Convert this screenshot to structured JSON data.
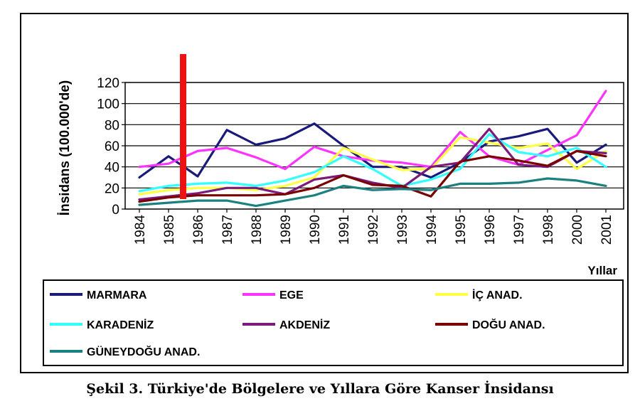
{
  "caption": "Şekil 3. Türkiye'de Bölgelere ve Yıllara Göre Kanser İnsidansı",
  "chart_data": {
    "type": "line",
    "title": "",
    "xlabel": "Yıllar",
    "ylabel": "İnsidans (100.000'de)",
    "ylim": [
      0,
      120
    ],
    "yticks": [
      "0",
      "20",
      "40",
      "60",
      "80",
      "100",
      "120"
    ],
    "categories": [
      "1984",
      "1985",
      "1986",
      "1987",
      "1988",
      "1989",
      "1990",
      "1991",
      "1992",
      "1993",
      "1994",
      "1995",
      "1996",
      "1997",
      "1998",
      "2000",
      "2001"
    ],
    "grid": true,
    "legend_position": "bottom",
    "series": [
      {
        "name": "MARMARA",
        "color": "#1a1a7a",
        "values": [
          30,
          50,
          31,
          75,
          61,
          67,
          81,
          60,
          40,
          40,
          30,
          44,
          64,
          69,
          76,
          44,
          61
        ]
      },
      {
        "name": "EGE",
        "color": "#ff33ff",
        "values": [
          40,
          43,
          55,
          58,
          49,
          38,
          59,
          50,
          46,
          44,
          40,
          73,
          50,
          42,
          56,
          70,
          112
        ]
      },
      {
        "name": "İÇ ANAD.",
        "color": "#ffff44",
        "values": [
          14,
          18,
          20,
          20,
          18,
          22,
          30,
          58,
          47,
          37,
          38,
          68,
          63,
          58,
          62,
          38,
          55
        ]
      },
      {
        "name": "KARADENİZ",
        "color": "#33ffff",
        "values": [
          17,
          22,
          24,
          25,
          22,
          27,
          35,
          50,
          38,
          22,
          28,
          38,
          71,
          54,
          50,
          58,
          40
        ]
      },
      {
        "name": "AKDENİZ",
        "color": "#7a1a7a",
        "values": [
          9,
          12,
          15,
          20,
          20,
          14,
          28,
          32,
          25,
          20,
          40,
          44,
          76,
          42,
          40,
          55,
          53
        ]
      },
      {
        "name": "DOĞU ANAD.",
        "color": "#7a0000",
        "values": [
          7,
          11,
          13,
          13,
          13,
          14,
          20,
          32,
          23,
          22,
          12,
          45,
          50,
          46,
          41,
          55,
          50
        ]
      },
      {
        "name": "GÜNEYDOĞU ANAD.",
        "color": "#1a8080",
        "values": [
          4,
          6,
          8,
          8,
          3,
          8,
          13,
          22,
          18,
          19,
          18,
          24,
          24,
          25,
          29,
          27,
          22
        ]
      }
    ],
    "annotation": {
      "type": "vertical-bar",
      "color": "#ee1111",
      "x_between": [
        "1985",
        "1986"
      ]
    }
  }
}
